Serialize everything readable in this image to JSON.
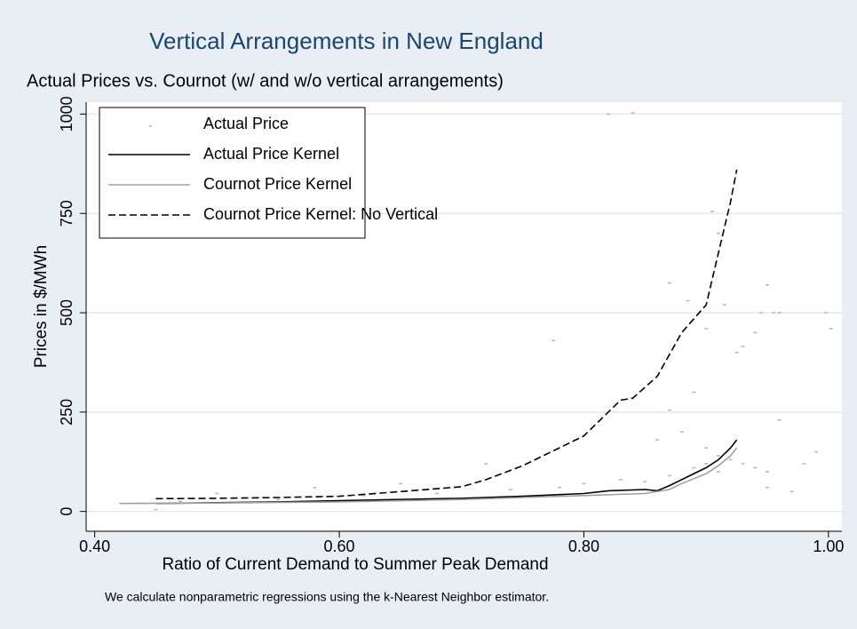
{
  "chart_data": {
    "type": "line",
    "title": "Vertical Arrangements in New England",
    "subtitle": "Actual Prices vs. Cournot (w/ and w/o vertical arrangements)",
    "x_label": "Ratio of Current Demand to Summer Peak Demand",
    "y_label": "Prices in $/MWh",
    "note": "We calculate nonparametric regressions using the k-Nearest Neighbor estimator.",
    "xlim": [
      0.393,
      1.011
    ],
    "ylim": [
      -50,
      1030
    ],
    "xticks": [
      {
        "value": 0.4,
        "label": "0.40"
      },
      {
        "value": 0.6,
        "label": "0.60"
      },
      {
        "value": 0.8,
        "label": "0.80"
      },
      {
        "value": 1.0,
        "label": "1.00"
      }
    ],
    "yticks": [
      0,
      250,
      500,
      750,
      1000
    ],
    "grid": true,
    "legend": "top-left",
    "series": [
      {
        "name": "Actual Price",
        "type": "scatter",
        "color": "#b4b4b4",
        "x": [
          0.82,
          0.84,
          0.905,
          0.91,
          0.945,
          0.95,
          0.955,
          0.96,
          0.998,
          1.002,
          0.775,
          0.87,
          0.885,
          0.9,
          0.915,
          0.925,
          0.93,
          0.94,
          0.98,
          0.99,
          0.96,
          0.89,
          0.87,
          0.88,
          0.86,
          0.9,
          0.91,
          0.92,
          0.93,
          0.94,
          0.95,
          0.72,
          0.65,
          0.58,
          0.5,
          0.44,
          0.47,
          0.55,
          0.62,
          0.68,
          0.74,
          0.78,
          0.8,
          0.83,
          0.85,
          0.87,
          0.89,
          0.9,
          0.91,
          0.95,
          0.97,
          0.45,
          0.6
        ],
        "values": [
          1000,
          1003,
          755,
          700,
          500,
          570,
          500,
          500,
          500,
          460,
          430,
          575,
          530,
          460,
          520,
          400,
          415,
          450,
          120,
          150,
          230,
          300,
          255,
          200,
          180,
          160,
          140,
          130,
          120,
          110,
          100,
          120,
          70,
          60,
          45,
          20,
          25,
          30,
          40,
          45,
          55,
          60,
          70,
          80,
          75,
          90,
          110,
          120,
          100,
          60,
          50,
          5,
          25
        ]
      },
      {
        "name": "Actual Price Kernel",
        "type": "line",
        "color": "#000000",
        "dash": false,
        "x": [
          0.45,
          0.5,
          0.55,
          0.6,
          0.65,
          0.7,
          0.75,
          0.8,
          0.82,
          0.85,
          0.86,
          0.87,
          0.88,
          0.9,
          0.91,
          0.92,
          0.925
        ],
        "values": [
          20,
          22,
          24,
          27,
          30,
          33,
          38,
          45,
          52,
          55,
          52,
          65,
          80,
          110,
          130,
          160,
          180
        ]
      },
      {
        "name": "Cournot Price Kernel",
        "type": "line",
        "color": "#a0a0a0",
        "dash": false,
        "x": [
          0.42,
          0.5,
          0.6,
          0.7,
          0.75,
          0.8,
          0.85,
          0.87,
          0.88,
          0.9,
          0.91,
          0.92,
          0.925
        ],
        "values": [
          20,
          21,
          24,
          30,
          35,
          40,
          45,
          55,
          70,
          95,
          115,
          140,
          160
        ]
      },
      {
        "name": "Cournot Price Kernel: No Vertical",
        "type": "line",
        "color": "#000000",
        "dash": true,
        "x": [
          0.45,
          0.5,
          0.55,
          0.6,
          0.65,
          0.7,
          0.72,
          0.75,
          0.78,
          0.8,
          0.82,
          0.83,
          0.84,
          0.86,
          0.88,
          0.9,
          0.91,
          0.92,
          0.925
        ],
        "values": [
          32,
          33,
          35,
          38,
          50,
          62,
          80,
          115,
          160,
          190,
          250,
          280,
          285,
          340,
          450,
          520,
          650,
          780,
          860
        ]
      }
    ]
  }
}
